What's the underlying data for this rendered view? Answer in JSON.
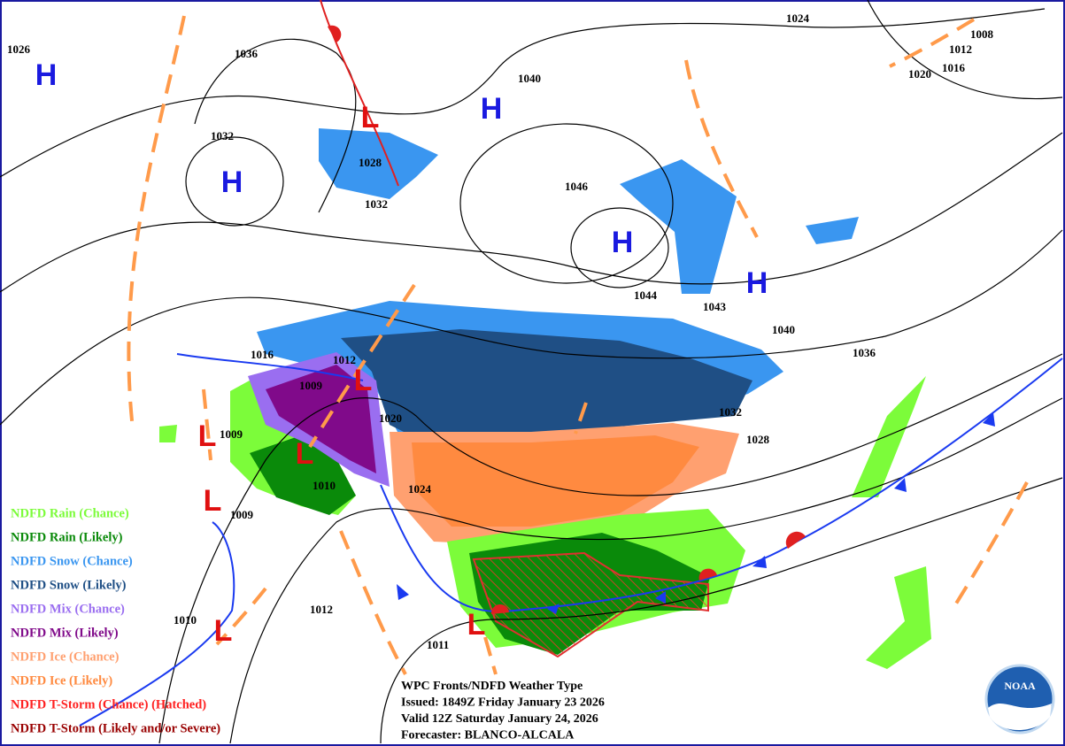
{
  "isobar_labels": [
    1026,
    1036,
    1032,
    1028,
    1032,
    1040,
    1024,
    1012,
    1008,
    1020,
    1016,
    1046,
    1044,
    1043,
    1040,
    1036,
    1032,
    1028,
    1016,
    1012,
    1009,
    1020,
    1024,
    1009,
    1010,
    1009,
    1010,
    1012,
    1011
  ],
  "highs": [
    "H",
    "H",
    "H",
    "H",
    "H"
  ],
  "lows": [
    "L",
    "L",
    "L",
    "L",
    "L",
    "L",
    "L"
  ],
  "legend": [
    {
      "label": "NDFD Rain (Chance)",
      "color": "#7cfc3a"
    },
    {
      "label": "NDFD Rain (Likely)",
      "color": "#0a8a0a"
    },
    {
      "label": "NDFD Snow (Chance)",
      "color": "#3a96f0"
    },
    {
      "label": "NDFD Snow (Likely)",
      "color": "#1f4f85"
    },
    {
      "label": "NDFD Mix (Chance)",
      "color": "#9a6ef0"
    },
    {
      "label": "NDFD Mix (Likely)",
      "color": "#800a8a"
    },
    {
      "label": "NDFD Ice (Chance)",
      "color": "#ffa070"
    },
    {
      "label": "NDFD Ice (Likely)",
      "color": "#ff8a40"
    },
    {
      "label": "NDFD T-Storm (Chance) (Hatched)",
      "color": "#ff2020"
    },
    {
      "label": "NDFD T-Storm (Likely and/or Severe)",
      "color": "#990000"
    }
  ],
  "info": [
    "WPC Fronts/NDFD Weather Type",
    "Issued: 1849Z Friday January 23 2026",
    "Valid 12Z Saturday January 24, 2026",
    "Forecaster: BLANCO-ALCALA"
  ],
  "logo": "NOAA"
}
